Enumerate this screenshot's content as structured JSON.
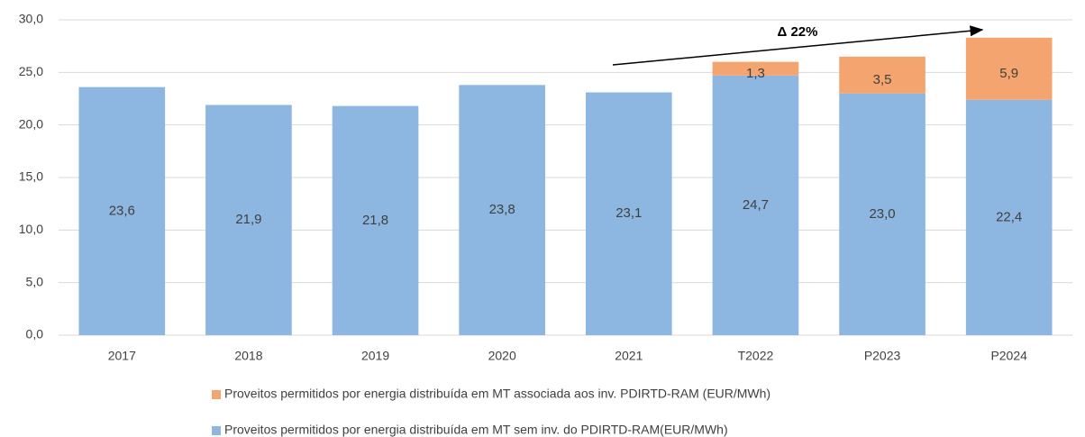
{
  "chart_data": {
    "type": "stacked_bar",
    "annotation": "Δ 22%",
    "categories": [
      "2017",
      "2018",
      "2019",
      "2020",
      "2021",
      "T2022",
      "P2023",
      "P2024"
    ],
    "series": [
      {
        "name": "Proveitos permitidos por energia distribuída em MT sem inv. do PDIRTD-RAM(EUR/MWh)",
        "color": "#8db6e0",
        "values": [
          23.6,
          21.9,
          21.8,
          23.8,
          23.1,
          24.7,
          23.0,
          22.4
        ],
        "value_labels": [
          "23,6",
          "21,9",
          "21,8",
          "23,8",
          "23,1",
          "24,7",
          "23,0",
          "22,4"
        ]
      },
      {
        "name": "Proveitos permitidos por energia distribuída em MT associada aos inv. PDIRTD-RAM (EUR/MWh)",
        "color": "#f4a46e",
        "values": [
          null,
          null,
          null,
          null,
          null,
          1.3,
          3.5,
          5.9
        ],
        "value_labels": [
          null,
          null,
          null,
          null,
          null,
          "1,3",
          "3,5",
          "5,9"
        ]
      }
    ],
    "ylim": [
      0,
      30
    ],
    "yticks": [
      {
        "value": 0,
        "label": "0,0"
      },
      {
        "value": 5,
        "label": "5,0"
      },
      {
        "value": 10,
        "label": "10,0"
      },
      {
        "value": 15,
        "label": "15,0"
      },
      {
        "value": 20,
        "label": "20,0"
      },
      {
        "value": 25,
        "label": "25,0"
      },
      {
        "value": 30,
        "label": "30,0"
      }
    ],
    "grid": true
  }
}
